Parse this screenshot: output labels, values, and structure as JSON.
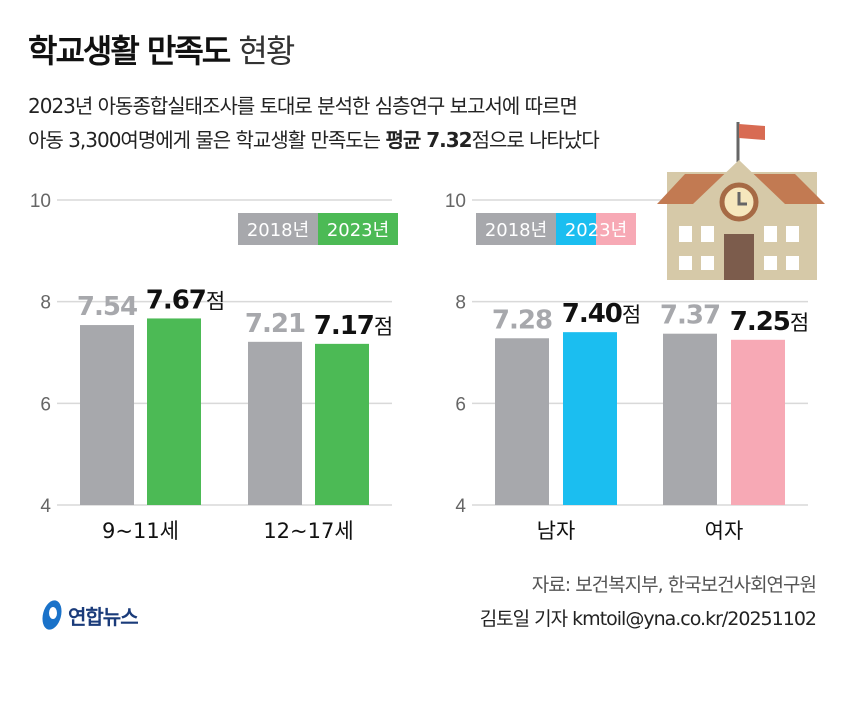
{
  "title": {
    "bold": "학교생활 만족도",
    "light": "현황"
  },
  "subtitle": {
    "line1": "2023년 아동종합실태조사를 토대로 분석한 심층연구 보고서에 따르면",
    "line2_pre": "아동 3,300여명에게 물은 학교생활 만족도는 ",
    "line2_bold": "평균 7.32",
    "line2_post": "점으로 나타났다"
  },
  "source": "자료: 보건복지부, 한국보건사회연구원",
  "credit": "김토일 기자 kmtoil@yna.co.kr/20251102",
  "logo": "연합뉴스",
  "unit": "점",
  "chart_data": [
    {
      "type": "bar",
      "categories": [
        "9~11세",
        "12~17세"
      ],
      "ylim": [
        4,
        10
      ],
      "yticks": [
        4,
        6,
        8,
        10
      ],
      "grid": true,
      "series": [
        {
          "name": "2018년",
          "color": "#a7a8ac",
          "values": [
            7.54,
            7.21
          ]
        },
        {
          "name": "2023년",
          "color": "#4cba55",
          "values": [
            7.67,
            7.17
          ]
        }
      ]
    },
    {
      "type": "bar",
      "categories": [
        "남자",
        "여자"
      ],
      "ylim": [
        4,
        10
      ],
      "yticks": [
        4,
        6,
        8,
        10
      ],
      "grid": true,
      "series": [
        {
          "name": "2018년",
          "color": "#a7a8ac",
          "values": [
            7.28,
            7.37
          ]
        },
        {
          "name": "2023년",
          "colors": [
            "#1bbef0",
            "#f7a9b5"
          ],
          "values": [
            7.4,
            7.25
          ]
        }
      ]
    }
  ]
}
